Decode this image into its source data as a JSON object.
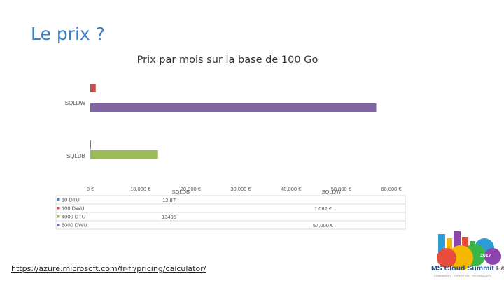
{
  "slide": {
    "title": "Le prix ?",
    "link": "https://azure.microsoft.com/fr-fr/pricing/calculator/",
    "logo": {
      "year": "2017",
      "brand": "MS Cloud Summit",
      "city": "Paris",
      "tagline": "COMMUNITY · EXPERTISE · TECHNOLOGY",
      "colors": [
        "#e84c3d",
        "#f5b800",
        "#2e9bd6",
        "#8e44ad",
        "#3ab54a"
      ]
    }
  },
  "chart_data": {
    "type": "bar",
    "orientation": "horizontal",
    "title": "Prix par mois sur la base de 100 Go",
    "categories": [
      "SQLDW",
      "SQLDB"
    ],
    "x_ticks": [
      "0 €",
      "10,000 €",
      "20,000 €",
      "30,000 €",
      "40,000 €",
      "50,000 €",
      "60,000 €"
    ],
    "xlim": [
      0,
      60000
    ],
    "grid": false,
    "series": [
      {
        "name": "10 DTU",
        "color": "#4f81bd",
        "values": [
          null,
          12.87
        ],
        "label": "12.87"
      },
      {
        "name": "100 DWU",
        "color": "#c0504d",
        "values": [
          1082,
          null
        ],
        "label": "1,082 €"
      },
      {
        "name": "4000 DTU",
        "color": "#9bbb59",
        "values": [
          null,
          13495
        ],
        "label": "13495"
      },
      {
        "name": "8000 DWU",
        "color": "#8064a2",
        "values": [
          57000,
          null
        ],
        "label": "57,000 €"
      }
    ],
    "table": {
      "columns": [
        "SQLDB",
        "SQLDW"
      ],
      "rows": [
        {
          "series": "10 DTU",
          "cells": [
            "12.87",
            ""
          ]
        },
        {
          "series": "100 DWU",
          "cells": [
            "",
            "1,082 €"
          ]
        },
        {
          "series": "4000 DTU",
          "cells": [
            "13495",
            ""
          ]
        },
        {
          "series": "8000 DWU",
          "cells": [
            "",
            "57,000 €"
          ]
        }
      ]
    }
  }
}
